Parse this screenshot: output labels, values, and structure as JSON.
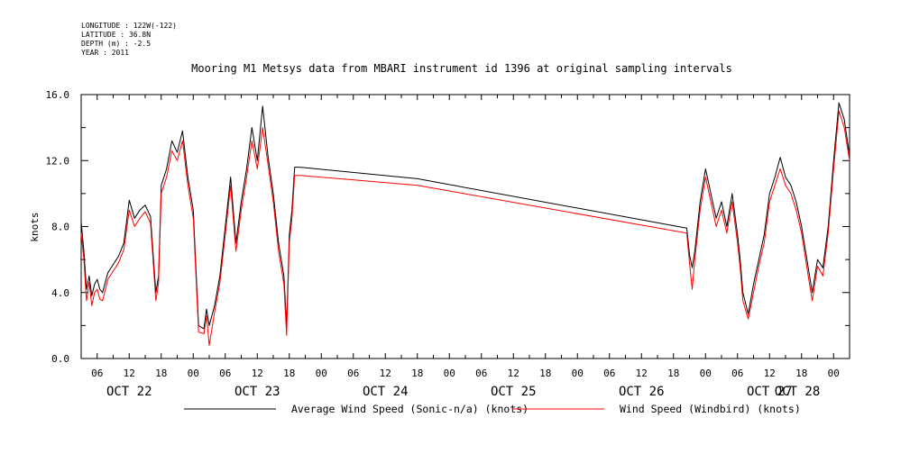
{
  "metadata": [
    "LONGITUDE : 122W(-122)",
    "LATITUDE : 36.8N",
    "DEPTH (m) : -2.5",
    "YEAR : 2011"
  ],
  "chart_data": {
    "type": "line",
    "title": "Mooring M1 Metsys data from MBARI instrument id 1396 at original sampling intervals",
    "ylabel": "knots",
    "xlabel": "",
    "ylim": [
      0,
      16
    ],
    "xlim": [
      3,
      147
    ],
    "yticks": [
      0,
      4,
      8,
      12,
      16
    ],
    "ytick_labels": [
      "0.0",
      "4.0",
      "8.0",
      "12.0",
      "16.0"
    ],
    "x_unit": "hours since OCT 22 00:00",
    "xticks": [
      6,
      12,
      18,
      24,
      30,
      36,
      42,
      48,
      54,
      60,
      66,
      72,
      78,
      84,
      90,
      96,
      102,
      108,
      114,
      120,
      126,
      132,
      138,
      144
    ],
    "xtick_labels": [
      "06",
      "12",
      "18",
      "00",
      "06",
      "12",
      "18",
      "00",
      "06",
      "12",
      "18",
      "00",
      "06",
      "12",
      "18",
      "00",
      "06",
      "12",
      "18",
      "00",
      "06",
      "12",
      "18",
      "00"
    ],
    "day_labels": [
      {
        "x": 12,
        "label": "OCT 22"
      },
      {
        "x": 36,
        "label": "OCT 23"
      },
      {
        "x": 60,
        "label": "OCT 24"
      },
      {
        "x": 84,
        "label": "OCT 25"
      },
      {
        "x": 108,
        "label": "OCT 26"
      },
      {
        "x": 132,
        "label": "OCT 27"
      },
      {
        "x": 156,
        "label": "OCT 28"
      }
    ],
    "grid": false,
    "legend_position": "bottom",
    "series": [
      {
        "name": "Average Wind Speed (Sonic-n/a) (knots)",
        "color": "#000000",
        "x": [
          3,
          3.5,
          4,
          4.5,
          5,
          5.5,
          6,
          6.5,
          7,
          8,
          9,
          10,
          11,
          12,
          13,
          14,
          15,
          16,
          17,
          17.5,
          18,
          19,
          20,
          21,
          22,
          23,
          24,
          25,
          26,
          26.5,
          27,
          28,
          29,
          30,
          31,
          32,
          33,
          34,
          35,
          36,
          37,
          38,
          39,
          40,
          41,
          41.5,
          42,
          42.5,
          43,
          44,
          66,
          116.5,
          117,
          117.5,
          118,
          119,
          120,
          121,
          122,
          123,
          124,
          125,
          126,
          126.5,
          127,
          128,
          129,
          130,
          131,
          132,
          133,
          134,
          135,
          136,
          137,
          138,
          139,
          140,
          141,
          142,
          143,
          144,
          145,
          146,
          147
        ],
        "y": [
          8.3,
          6.5,
          4.2,
          5.0,
          3.8,
          4.5,
          4.8,
          4.2,
          4.0,
          5.2,
          5.7,
          6.2,
          7.0,
          9.6,
          8.5,
          9.0,
          9.3,
          8.6,
          4.0,
          5.0,
          10.5,
          11.5,
          13.2,
          12.5,
          13.8,
          11.0,
          9.0,
          2.0,
          1.8,
          3.0,
          2.0,
          3.2,
          5.0,
          8.0,
          11.0,
          7.0,
          9.5,
          11.5,
          14.0,
          12.0,
          15.3,
          12.3,
          10.0,
          7.0,
          5.0,
          2.0,
          7.5,
          9.0,
          11.6,
          11.6,
          10.9,
          7.9,
          6.3,
          5.5,
          6.5,
          9.5,
          11.5,
          10.0,
          8.5,
          9.5,
          8.0,
          10.0,
          7.5,
          6.0,
          4.0,
          2.7,
          4.5,
          6.0,
          7.5,
          10.0,
          11.0,
          12.2,
          11.0,
          10.5,
          9.5,
          8.0,
          6.0,
          4.0,
          6.0,
          5.5,
          8.0,
          12.0,
          15.5,
          14.5,
          12.3
        ]
      },
      {
        "name": "Wind Speed (Windbird) (knots)",
        "color": "#ff0000",
        "x": [
          3,
          3.5,
          4,
          4.5,
          5,
          5.5,
          6,
          6.5,
          7,
          8,
          9,
          10,
          11,
          12,
          13,
          14,
          15,
          16,
          17,
          17.5,
          18,
          19,
          20,
          21,
          22,
          23,
          24,
          25,
          26,
          26.5,
          27,
          28,
          29,
          30,
          31,
          32,
          33,
          34,
          35,
          36,
          37,
          38,
          39,
          40,
          41,
          41.5,
          42,
          42.5,
          43,
          44,
          66,
          116.5,
          117,
          117.5,
          118,
          119,
          120,
          121,
          122,
          123,
          124,
          125,
          126,
          126.5,
          127,
          128,
          129,
          130,
          131,
          132,
          133,
          134,
          135,
          136,
          137,
          138,
          139,
          140,
          141,
          142,
          143,
          144,
          145,
          146,
          147
        ],
        "y": [
          7.6,
          6.0,
          3.5,
          4.6,
          3.2,
          4.0,
          4.2,
          3.6,
          3.5,
          4.8,
          5.3,
          5.8,
          6.6,
          9.0,
          8.0,
          8.5,
          8.9,
          8.2,
          3.5,
          4.6,
          10.0,
          11.0,
          12.6,
          12.0,
          13.2,
          10.5,
          8.5,
          1.6,
          1.5,
          2.6,
          0.8,
          2.8,
          4.6,
          7.5,
          10.5,
          6.5,
          9.0,
          11.0,
          13.2,
          11.5,
          14.0,
          11.8,
          9.5,
          6.5,
          4.5,
          1.4,
          7.0,
          8.5,
          11.1,
          11.1,
          10.5,
          7.6,
          5.8,
          4.2,
          6.0,
          9.0,
          11.0,
          9.5,
          8.0,
          9.0,
          7.6,
          9.5,
          7.0,
          5.5,
          3.5,
          2.4,
          4.0,
          5.6,
          7.0,
          9.5,
          10.5,
          11.5,
          10.5,
          10.0,
          9.0,
          7.6,
          5.5,
          3.5,
          5.6,
          5.0,
          7.6,
          11.5,
          15.0,
          14.0,
          12.0
        ]
      }
    ]
  }
}
